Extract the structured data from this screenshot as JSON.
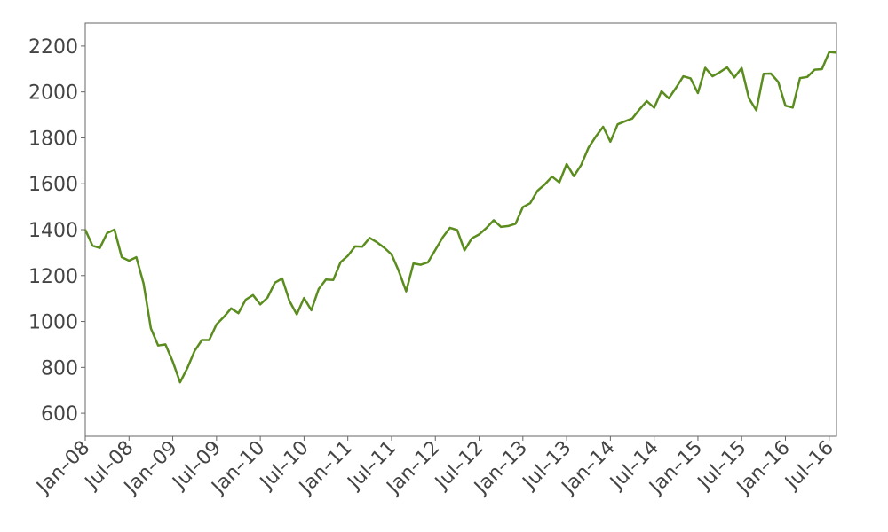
{
  "chart_data": {
    "type": "line",
    "x": [
      "2008-01",
      "2008-02",
      "2008-03",
      "2008-04",
      "2008-05",
      "2008-06",
      "2008-07",
      "2008-08",
      "2008-09",
      "2008-10",
      "2008-11",
      "2008-12",
      "2009-01",
      "2009-02",
      "2009-03",
      "2009-04",
      "2009-05",
      "2009-06",
      "2009-07",
      "2009-08",
      "2009-09",
      "2009-10",
      "2009-11",
      "2009-12",
      "2010-01",
      "2010-02",
      "2010-03",
      "2010-04",
      "2010-05",
      "2010-06",
      "2010-07",
      "2010-08",
      "2010-09",
      "2010-10",
      "2010-11",
      "2010-12",
      "2011-01",
      "2011-02",
      "2011-03",
      "2011-04",
      "2011-05",
      "2011-06",
      "2011-07",
      "2011-08",
      "2011-09",
      "2011-10",
      "2011-11",
      "2011-12",
      "2012-01",
      "2012-02",
      "2012-03",
      "2012-04",
      "2012-05",
      "2012-06",
      "2012-07",
      "2012-08",
      "2012-09",
      "2012-10",
      "2012-11",
      "2012-12",
      "2013-01",
      "2013-02",
      "2013-03",
      "2013-04",
      "2013-05",
      "2013-06",
      "2013-07",
      "2013-08",
      "2013-09",
      "2013-10",
      "2013-11",
      "2013-12",
      "2014-01",
      "2014-02",
      "2014-03",
      "2014-04",
      "2014-05",
      "2014-06",
      "2014-07",
      "2014-08",
      "2014-09",
      "2014-10",
      "2014-11",
      "2014-12",
      "2015-01",
      "2015-02",
      "2015-03",
      "2015-04",
      "2015-05",
      "2015-06",
      "2015-07",
      "2015-08",
      "2015-09",
      "2015-10",
      "2015-11",
      "2015-12",
      "2016-01",
      "2016-02",
      "2016-03",
      "2016-04",
      "2016-05",
      "2016-06",
      "2016-07",
      "2016-08"
    ],
    "series": [
      {
        "color": "#5b8c1e",
        "values": [
          1400,
          1330,
          1320,
          1385,
          1400,
          1280,
          1265,
          1280,
          1165,
          970,
          895,
          900,
          825,
          735,
          797,
          872,
          919,
          919,
          987,
          1020,
          1057,
          1036,
          1095,
          1115,
          1074,
          1104,
          1169,
          1187,
          1089,
          1031,
          1102,
          1049,
          1141,
          1183,
          1181,
          1258,
          1286,
          1327,
          1326,
          1364,
          1345,
          1321,
          1292,
          1219,
          1131,
          1253,
          1247,
          1258,
          1312,
          1366,
          1408,
          1398,
          1310,
          1362,
          1379,
          1407,
          1441,
          1412,
          1416,
          1426,
          1498,
          1515,
          1569,
          1597,
          1631,
          1606,
          1686,
          1633,
          1682,
          1757,
          1806,
          1848,
          1783,
          1859,
          1872,
          1884,
          1924,
          1960,
          1931,
          2003,
          1972,
          2018,
          2068,
          2059,
          1995,
          2105,
          2068,
          2086,
          2107,
          2063,
          2104,
          1972,
          1920,
          2079,
          2080,
          2044,
          1940,
          1932,
          2060,
          2065,
          2097,
          2099,
          2174,
          2171
        ]
      }
    ],
    "xlim": [
      "2008-01",
      "2016-08"
    ],
    "xticks": [
      {
        "value": "2008-01",
        "label": "Jan–08"
      },
      {
        "value": "2008-07",
        "label": "Jul–08"
      },
      {
        "value": "2009-01",
        "label": "Jan–09"
      },
      {
        "value": "2009-07",
        "label": "Jul–09"
      },
      {
        "value": "2010-01",
        "label": "Jan–10"
      },
      {
        "value": "2010-07",
        "label": "Jul–10"
      },
      {
        "value": "2011-01",
        "label": "Jan–11"
      },
      {
        "value": "2011-07",
        "label": "Jul–11"
      },
      {
        "value": "2012-01",
        "label": "Jan–12"
      },
      {
        "value": "2012-07",
        "label": "Jul–12"
      },
      {
        "value": "2013-01",
        "label": "Jan–13"
      },
      {
        "value": "2013-07",
        "label": "Jul–13"
      },
      {
        "value": "2014-01",
        "label": "Jan–14"
      },
      {
        "value": "2014-07",
        "label": "Jul–14"
      },
      {
        "value": "2015-01",
        "label": "Jan–15"
      },
      {
        "value": "2015-07",
        "label": "Jul–15"
      },
      {
        "value": "2016-01",
        "label": "Jan–16"
      },
      {
        "value": "2016-07",
        "label": "Jul–16"
      }
    ],
    "ylim": [
      500,
      2300
    ],
    "yticks": [
      600,
      800,
      1000,
      1200,
      1400,
      1600,
      1800,
      2000,
      2200
    ],
    "grid": false
  }
}
